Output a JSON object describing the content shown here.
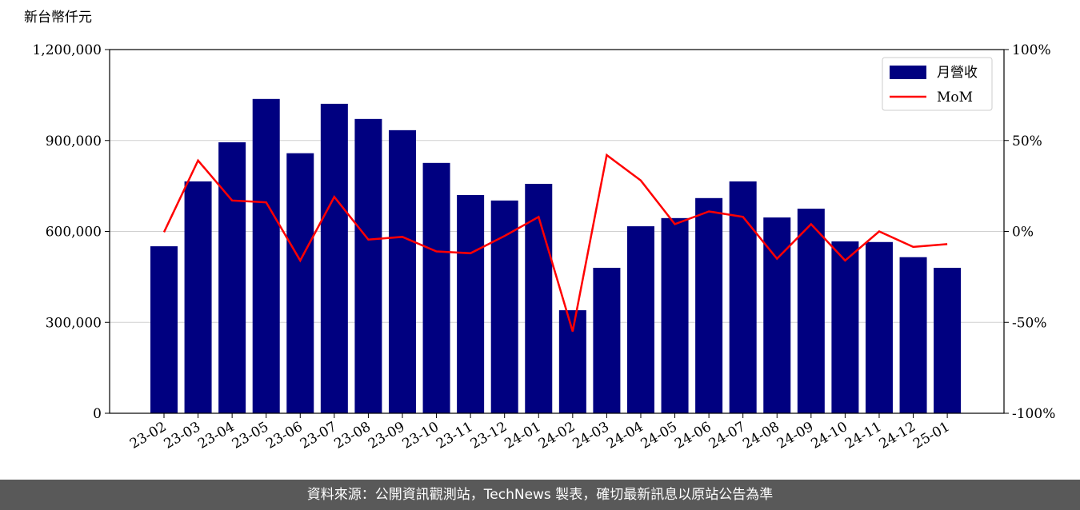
{
  "chart_data": {
    "type": "bar_line",
    "y_label": "新台幣仟元",
    "categories": [
      "23-02",
      "23-03",
      "23-04",
      "23-05",
      "23-06",
      "23-07",
      "23-08",
      "23-09",
      "23-10",
      "23-11",
      "23-12",
      "24-01",
      "24-02",
      "24-03",
      "24-04",
      "24-05",
      "24-06",
      "24-07",
      "24-08",
      "24-09",
      "24-10",
      "24-11",
      "24-12",
      "25-01"
    ],
    "series": [
      {
        "name": "月營收",
        "color": "#000080",
        "type": "bar",
        "values": [
          551000,
          765000,
          894000,
          1037000,
          858000,
          1021000,
          971000,
          934000,
          826000,
          720000,
          702000,
          757000,
          340000,
          480000,
          617000,
          644000,
          710000,
          765000,
          646000,
          675000,
          567000,
          565000,
          515000,
          480000
        ]
      },
      {
        "name": "MoM",
        "color": "#ff0000",
        "type": "line",
        "axis": "y2",
        "values": [
          -0.4,
          39,
          17,
          16,
          -16,
          19,
          -4.5,
          -3,
          -11,
          -12,
          -2.5,
          8,
          -55,
          42,
          28,
          4,
          11,
          8,
          -15,
          4,
          -16,
          0,
          -8.5,
          -7
        ]
      }
    ],
    "ylim": [
      0,
      1200000
    ],
    "yticks": [
      0,
      {
        "value": 300000,
        "label": "300,000"
      },
      {
        "value": 600000,
        "label": "600,000"
      },
      {
        "value": 900000,
        "label": "900,000"
      },
      {
        "value": 1200000,
        "label": "1,200,000"
      }
    ],
    "y2lim": [
      -100,
      100
    ],
    "y2ticks": [
      {
        "value": -100,
        "label": "-100%"
      },
      {
        "value": -50,
        "label": "-50%"
      },
      {
        "value": 0,
        "label": "0%"
      },
      {
        "value": 50,
        "label": "50%"
      },
      {
        "value": 100,
        "label": "100%"
      }
    ],
    "grid": true,
    "legend": "upper right",
    "source": "資料來源：公開資訊觀測站，TechNews 製表，確切最新訊息以原站公告為準"
  }
}
